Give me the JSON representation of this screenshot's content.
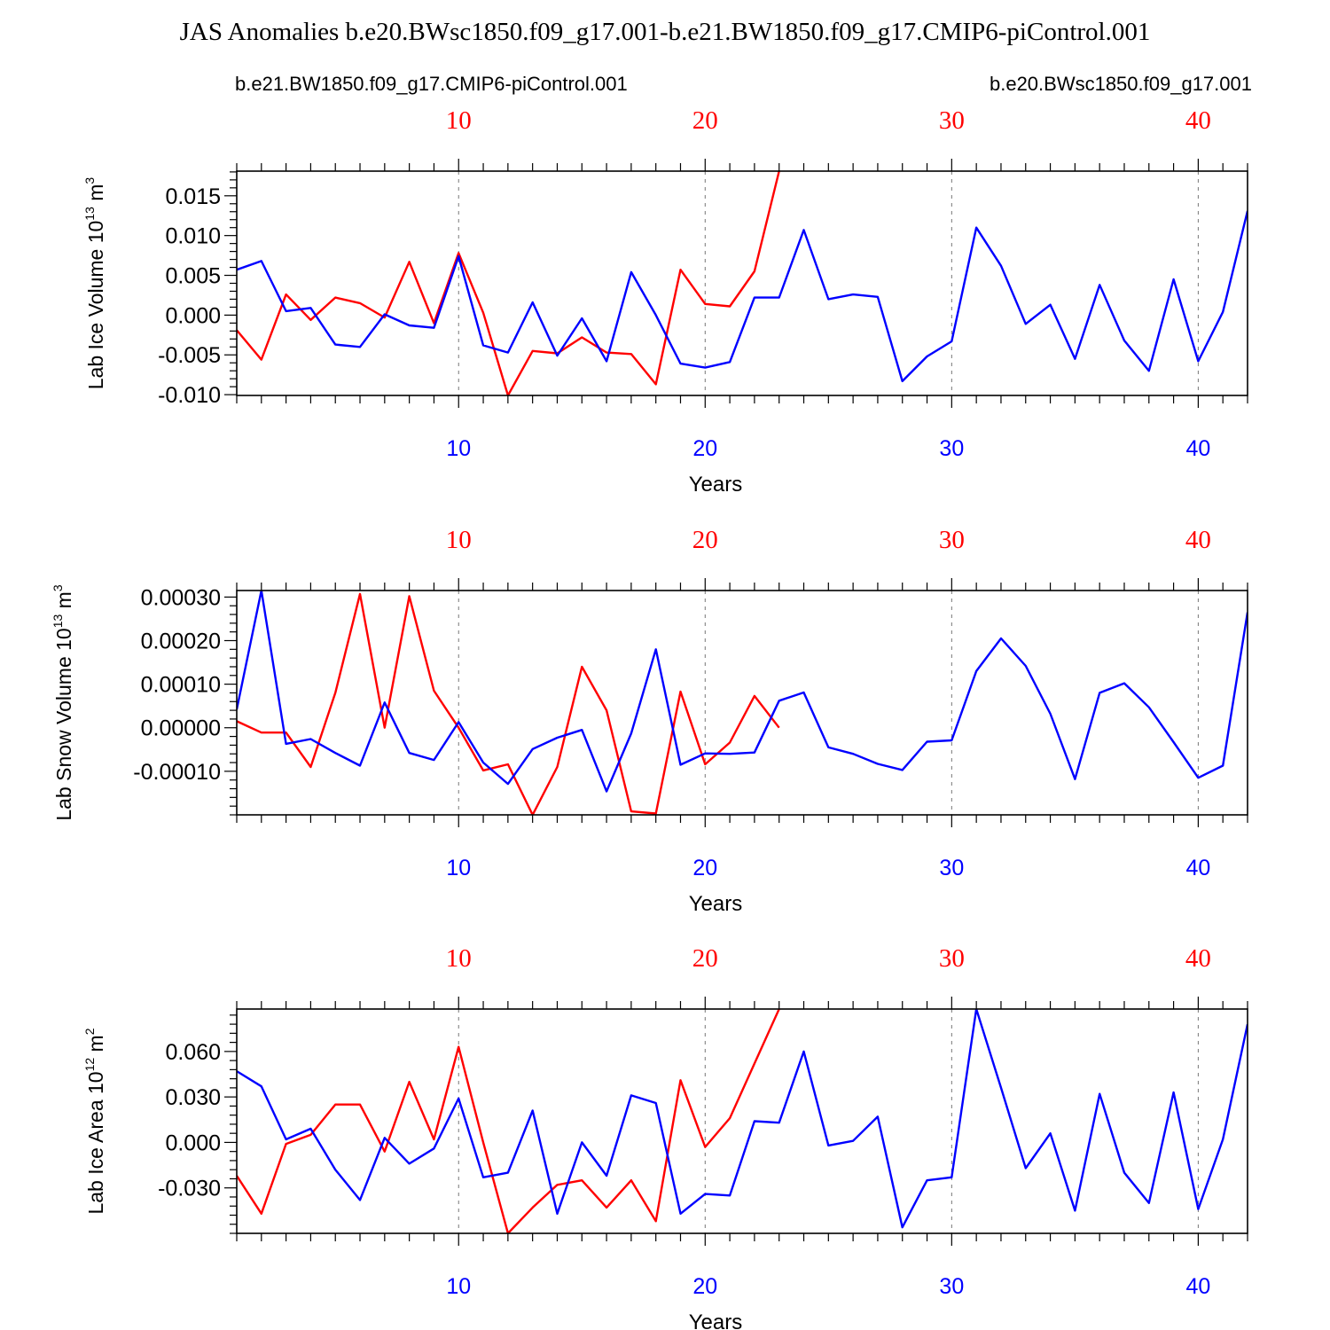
{
  "title": "JAS Anomalies b.e20.BWsc1850.f09_g17.001-b.e21.BW1850.f09_g17.CMIP6-piControl.001",
  "legend": {
    "red_label": "b.e21.BW1850.f09_g17.CMIP6-piControl.001",
    "blue_label": "b.e20.BWsc1850.f09_g17.001"
  },
  "colors": {
    "red": "#ff0000",
    "blue": "#0000ff",
    "axis": "#000000"
  },
  "chart_data": [
    {
      "type": "line",
      "ylabel_main": "Lab Ice Volume 10",
      "ylabel_exp": "13",
      "ylabel_unit": " m",
      "ylabel_unit_exp": "3",
      "xlabel": "Years",
      "xlim": [
        1,
        42
      ],
      "ylim": [
        -0.0101,
        0.0181
      ],
      "yticks": [
        {
          "value": -0.01,
          "label": "-0.010"
        },
        {
          "value": -0.005,
          "label": "-0.005"
        },
        {
          "value": 0.0,
          "label": "0.000"
        },
        {
          "value": 0.005,
          "label": "0.005"
        },
        {
          "value": 0.01,
          "label": "0.010"
        },
        {
          "value": 0.015,
          "label": "0.015"
        }
      ],
      "yminor_step": 0.001,
      "xticks": [
        {
          "value": 10,
          "label": "10"
        },
        {
          "value": 20,
          "label": "20"
        },
        {
          "value": 30,
          "label": "30"
        },
        {
          "value": 40,
          "label": "40"
        }
      ],
      "series": [
        {
          "name": "b.e21.BW1850.f09_g17.CMIP6-piControl.001",
          "color": "red",
          "x": [
            1,
            2,
            3,
            4,
            5,
            6,
            7,
            8,
            9,
            10,
            11,
            12,
            13,
            14,
            15,
            16,
            17,
            18,
            19,
            20,
            21,
            22,
            23
          ],
          "values": [
            -0.0019,
            -0.0056,
            0.0026,
            -0.0006,
            0.0022,
            0.0015,
            -0.0003,
            0.0067,
            -0.001,
            0.0078,
            0.0003,
            -0.0101,
            -0.0045,
            -0.0048,
            -0.0028,
            -0.0047,
            -0.0049,
            -0.0087,
            0.0057,
            0.0014,
            0.0011,
            0.0055,
            0.0181
          ]
        },
        {
          "name": "b.e20.BWsc1850.f09_g17.001",
          "color": "blue",
          "x": [
            1,
            2,
            3,
            4,
            5,
            6,
            7,
            8,
            9,
            10,
            11,
            12,
            13,
            14,
            15,
            16,
            17,
            18,
            19,
            20,
            21,
            22,
            23,
            24,
            25,
            26,
            27,
            28,
            29,
            30,
            31,
            32,
            33,
            34,
            35,
            36,
            37,
            38,
            39,
            40,
            41,
            42
          ],
          "values": [
            0.0057,
            0.0068,
            0.0005,
            0.0009,
            -0.0037,
            -0.004,
            0.0001,
            -0.0013,
            -0.0016,
            0.0074,
            -0.0038,
            -0.0047,
            0.0016,
            -0.0051,
            -0.0004,
            -0.0058,
            0.0054,
            0.0,
            -0.0061,
            -0.0066,
            -0.0059,
            0.0022,
            0.0022,
            0.0107,
            0.002,
            0.0026,
            0.0023,
            -0.0083,
            -0.0052,
            -0.0033,
            0.011,
            0.0062,
            -0.0011,
            0.0013,
            -0.0055,
            0.0038,
            -0.0032,
            -0.007,
            0.0045,
            -0.0058,
            0.0004,
            0.0131
          ]
        }
      ]
    },
    {
      "type": "line",
      "ylabel_main": "Lab Snow Volume 10",
      "ylabel_exp": "13",
      "ylabel_unit": " m",
      "ylabel_unit_exp": "3",
      "xlabel": "Years",
      "xlim": [
        1,
        42
      ],
      "ylim": [
        -0.0002,
        0.000315
      ],
      "yticks": [
        {
          "value": -0.0001,
          "label": "-0.00010"
        },
        {
          "value": 0.0,
          "label": "0.00000"
        },
        {
          "value": 0.0001,
          "label": "0.00010"
        },
        {
          "value": 0.0002,
          "label": "0.00020"
        },
        {
          "value": 0.0003,
          "label": "0.00030"
        }
      ],
      "yminor_step": 2e-05,
      "xticks": [
        {
          "value": 10,
          "label": "10"
        },
        {
          "value": 20,
          "label": "20"
        },
        {
          "value": 30,
          "label": "30"
        },
        {
          "value": 40,
          "label": "40"
        }
      ],
      "series": [
        {
          "name": "b.e21.BW1850.f09_g17.CMIP6-piControl.001",
          "color": "red",
          "x": [
            1,
            2,
            3,
            4,
            5,
            6,
            7,
            8,
            9,
            10,
            11,
            12,
            13,
            14,
            15,
            16,
            17,
            18,
            19,
            20,
            21,
            22,
            23
          ],
          "values": [
            1.5e-05,
            -1.1e-05,
            -1.1e-05,
            -9e-05,
            8e-05,
            0.000307,
            0.0,
            0.000302,
            8.5e-05,
            0.0,
            -9.8e-05,
            -8.4e-05,
            -0.0002,
            -9e-05,
            0.00014,
            4e-05,
            -0.000192,
            -0.000197,
            8.3e-05,
            -8.4e-05,
            -3.4e-05,
            7.3e-05,
            0.0
          ]
        },
        {
          "name": "b.e20.BWsc1850.f09_g17.001",
          "color": "blue",
          "x": [
            1,
            2,
            3,
            4,
            5,
            6,
            7,
            8,
            9,
            10,
            11,
            12,
            13,
            14,
            15,
            16,
            17,
            18,
            19,
            20,
            21,
            22,
            23,
            24,
            25,
            26,
            27,
            28,
            29,
            30,
            31,
            32,
            33,
            34,
            35,
            36,
            37,
            38,
            39,
            40,
            41,
            42
          ],
          "values": [
            4.2e-05,
            0.000315,
            -3.7e-05,
            -2.6e-05,
            -5.8e-05,
            -8.7e-05,
            5.8e-05,
            -5.8e-05,
            -7.4e-05,
            1.3e-05,
            -8e-05,
            -0.000129,
            -4.9e-05,
            -2.3e-05,
            -5e-06,
            -0.000146,
            -1.3e-05,
            0.00018,
            -8.5e-05,
            -5.9e-05,
            -6e-05,
            -5.7e-05,
            6.2e-05,
            8.1e-05,
            -4.5e-05,
            -6e-05,
            -8.3e-05,
            -9.7e-05,
            -3.2e-05,
            -2.9e-05,
            0.00013,
            0.000205,
            0.000142,
            3.2e-05,
            -0.000118,
            8e-05,
            0.000102,
            4.7e-05,
            -3.3e-05,
            -0.000115,
            -8.7e-05,
            0.000265
          ]
        }
      ]
    },
    {
      "type": "line",
      "ylabel_main": "Lab Ice Area 10",
      "ylabel_exp": "12",
      "ylabel_unit": " m",
      "ylabel_unit_exp": "2",
      "xlabel": "Years",
      "xlim": [
        1,
        42
      ],
      "ylim": [
        -0.06,
        0.088
      ],
      "yticks": [
        {
          "value": -0.03,
          "label": "-0.030"
        },
        {
          "value": 0.0,
          "label": "0.000"
        },
        {
          "value": 0.03,
          "label": "0.030"
        },
        {
          "value": 0.06,
          "label": "0.060"
        }
      ],
      "yminor_step": 0.006,
      "xticks": [
        {
          "value": 10,
          "label": "10"
        },
        {
          "value": 20,
          "label": "20"
        },
        {
          "value": 30,
          "label": "30"
        },
        {
          "value": 40,
          "label": "40"
        }
      ],
      "series": [
        {
          "name": "b.e21.BW1850.f09_g17.CMIP6-piControl.001",
          "color": "red",
          "x": [
            1,
            2,
            3,
            4,
            5,
            6,
            7,
            8,
            9,
            10,
            11,
            12,
            13,
            14,
            15,
            16,
            17,
            18,
            19,
            20,
            21,
            22,
            23
          ],
          "values": [
            -0.022,
            -0.047,
            -0.001,
            0.005,
            0.025,
            0.025,
            -0.006,
            0.04,
            0.002,
            0.063,
            0.0,
            -0.06,
            -0.043,
            -0.028,
            -0.025,
            -0.043,
            -0.025,
            -0.052,
            0.041,
            -0.003,
            0.016,
            0.052,
            0.088
          ]
        },
        {
          "name": "b.e20.BWsc1850.f09_g17.001",
          "color": "blue",
          "x": [
            1,
            2,
            3,
            4,
            5,
            6,
            7,
            8,
            9,
            10,
            11,
            12,
            13,
            14,
            15,
            16,
            17,
            18,
            19,
            20,
            21,
            22,
            23,
            24,
            25,
            26,
            27,
            28,
            29,
            30,
            31,
            32,
            33,
            34,
            35,
            36,
            37,
            38,
            39,
            40,
            41,
            42
          ],
          "values": [
            0.047,
            0.037,
            0.002,
            0.009,
            -0.018,
            -0.038,
            0.003,
            -0.014,
            -0.004,
            0.029,
            -0.023,
            -0.02,
            0.021,
            -0.047,
            0.0,
            -0.022,
            0.031,
            0.026,
            -0.047,
            -0.034,
            -0.035,
            0.014,
            0.013,
            0.06,
            -0.002,
            0.001,
            0.017,
            -0.056,
            -0.025,
            -0.023,
            0.088,
            0.036,
            -0.017,
            0.006,
            -0.045,
            0.032,
            -0.02,
            -0.04,
            0.033,
            -0.044,
            0.002,
            0.078
          ]
        }
      ]
    }
  ]
}
